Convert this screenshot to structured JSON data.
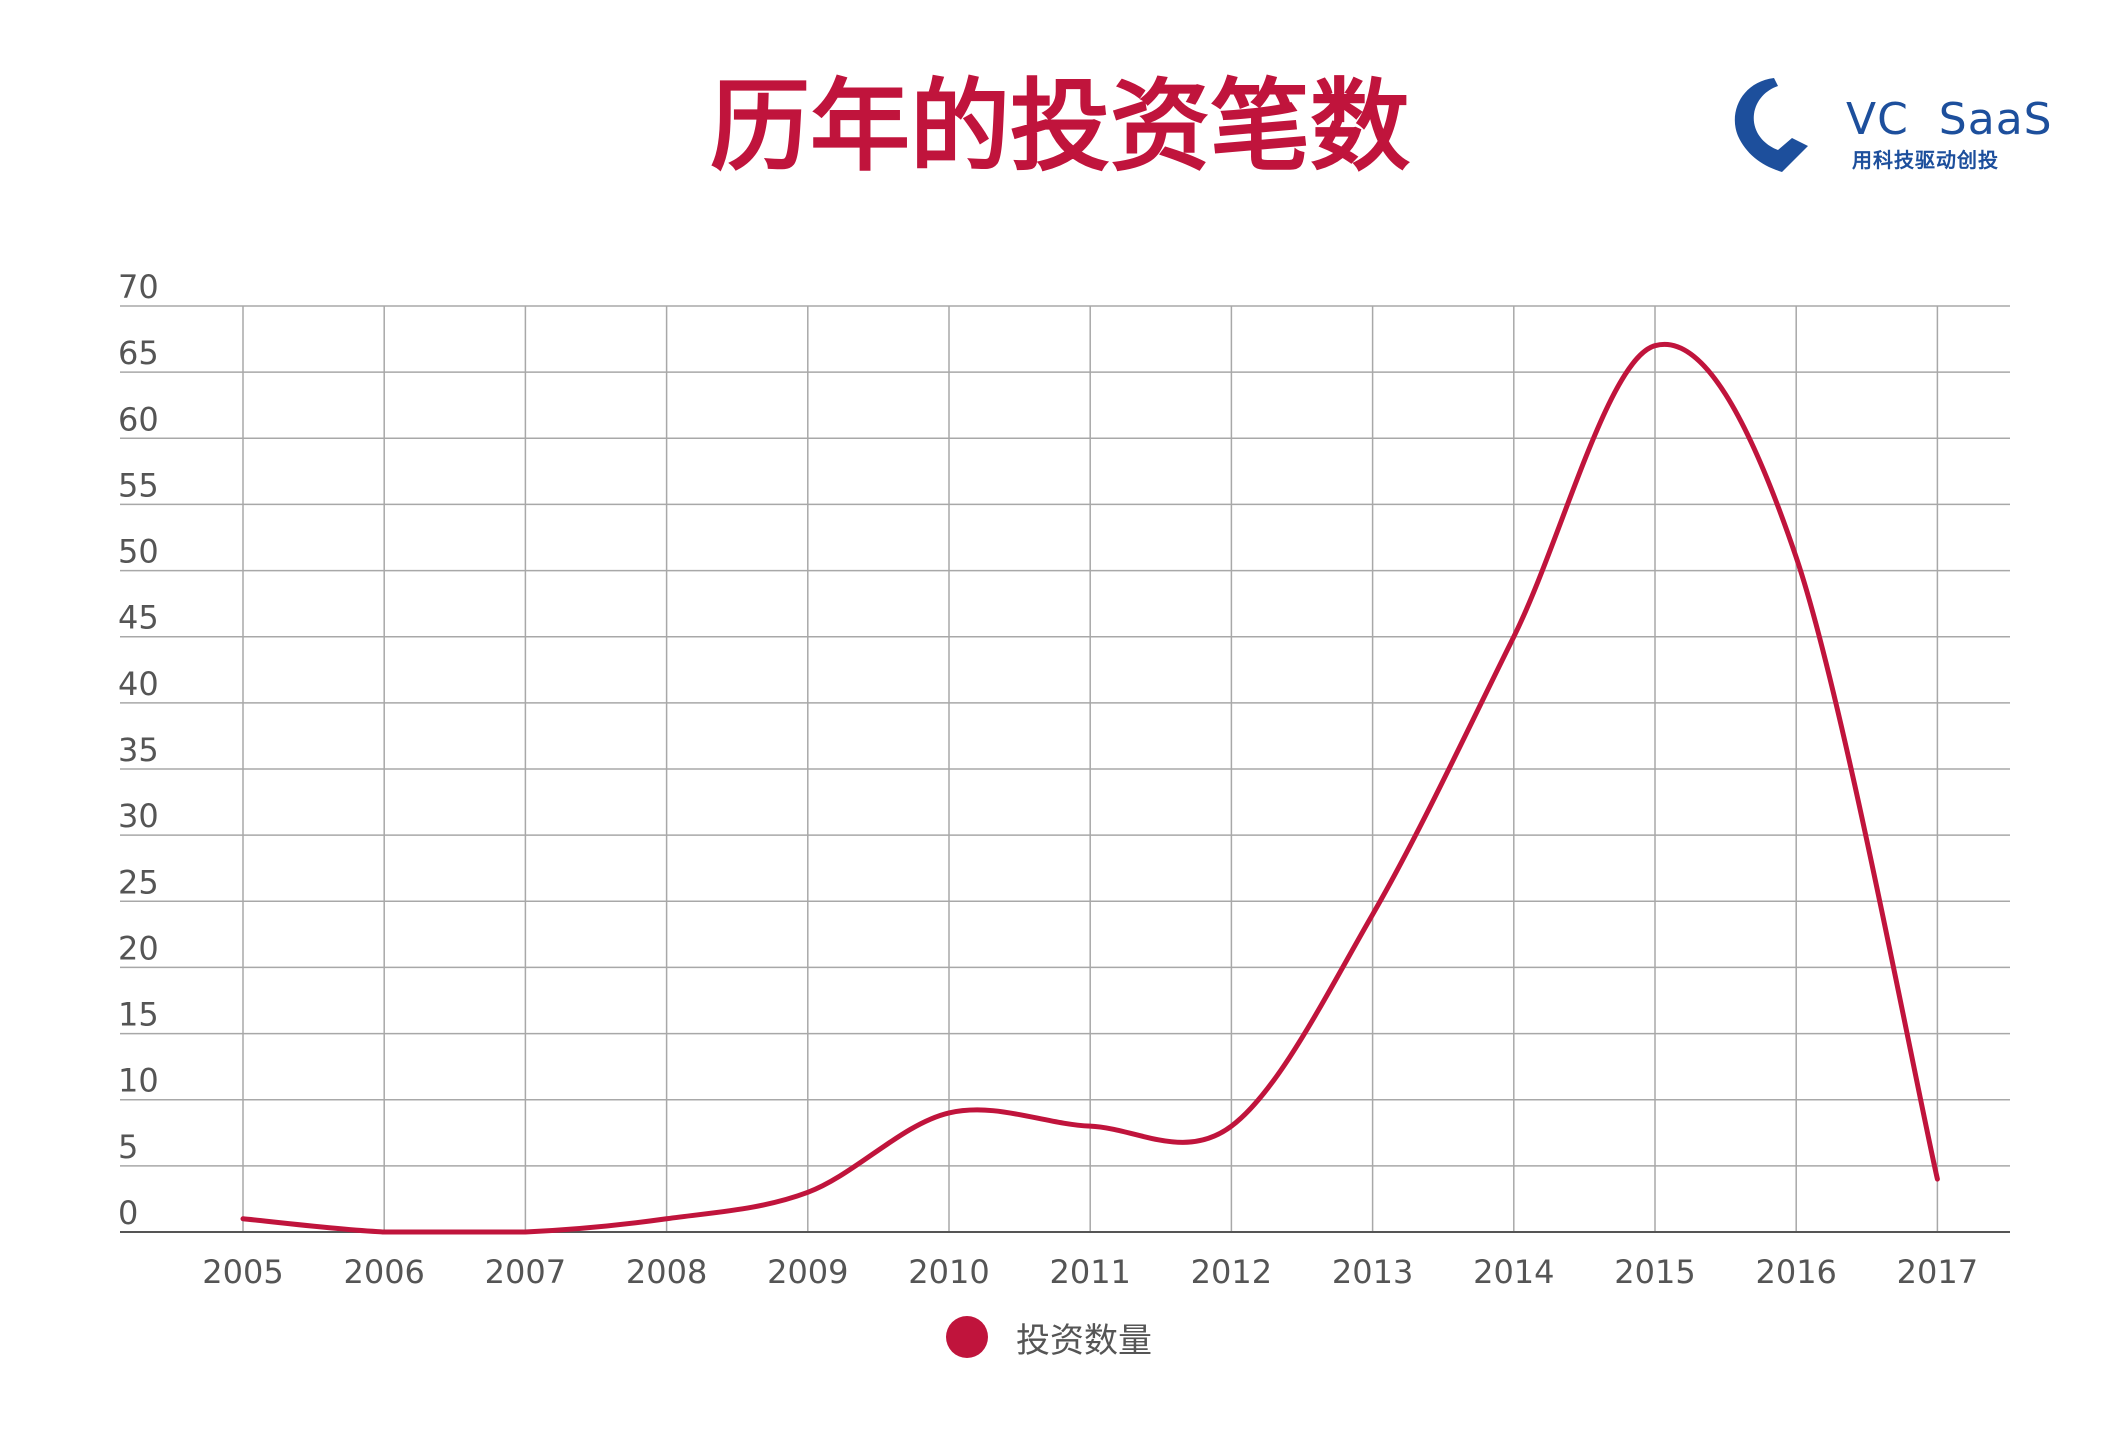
{
  "title": "历年的投资笔数",
  "logo": {
    "brand": "VC  SaaS",
    "slogan": "用科技驱动创投"
  },
  "colors": {
    "title": "#c0143c",
    "line": "#c0143c",
    "grid": "#a8a8a8",
    "axis": "#555555",
    "tick_text": "#555555",
    "logo": "#1d4f9c"
  },
  "chart_data": {
    "type": "line",
    "title": "历年的投资笔数",
    "xlabel": "",
    "ylabel": "",
    "categories": [
      "2005",
      "2006",
      "2007",
      "2008",
      "2009",
      "2010",
      "2011",
      "2012",
      "2013",
      "2014",
      "2015",
      "2016",
      "2017"
    ],
    "y_ticks": [
      0,
      5,
      10,
      15,
      20,
      25,
      30,
      35,
      40,
      45,
      50,
      55,
      60,
      65,
      70
    ],
    "ylim": [
      0,
      70
    ],
    "grid": true,
    "legend_position": "bottom-center",
    "series": [
      {
        "name": "投资数量",
        "values": [
          1,
          0,
          0,
          1,
          3,
          9,
          8,
          8,
          24,
          45,
          67,
          51,
          4
        ]
      }
    ]
  }
}
